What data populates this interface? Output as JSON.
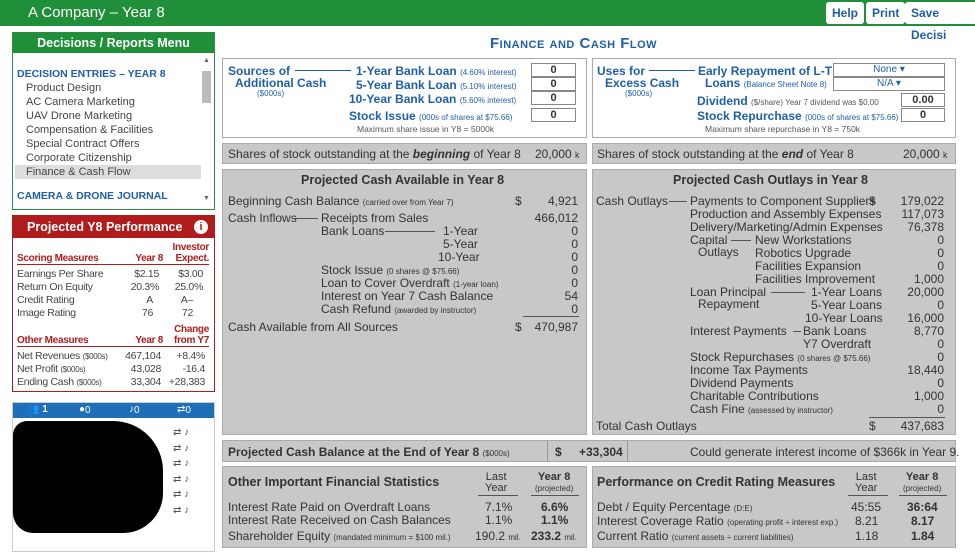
{
  "app": {
    "title": "A Company – Year 8",
    "help": "Help",
    "print": "Print",
    "save": "Save Decisi"
  },
  "menu": {
    "header": "Decisions / Reports Menu",
    "section1": "DECISION ENTRIES – YEAR 8",
    "items": [
      "Product Design",
      "AC Camera Marketing",
      "UAV Drone Marketing",
      "Compensation & Facilities",
      "Special Contract Offers",
      "Corporate Citizenship",
      "Finance & Cash Flow"
    ],
    "section2": "CAMERA & DRONE JOURNAL"
  },
  "perf": {
    "header": "Projected Y8 Performance",
    "col_year": "Year 8",
    "col_inv": "Investor",
    "col_inv2": "Expect.",
    "scoring_label": "Scoring Measures",
    "scoring": [
      {
        "name": "Earnings Per Share",
        "y8": "$2.15",
        "exp": "$3.00"
      },
      {
        "name": "Return On Equity",
        "y8": "20.3%",
        "exp": "25.0%"
      },
      {
        "name": "Credit Rating",
        "y8": "A",
        "exp": "A–"
      },
      {
        "name": "Image Rating",
        "y8": "76",
        "exp": "72"
      }
    ],
    "other_label": "Other Measures",
    "col_change": "Change",
    "col_change2": "from Y7",
    "other": [
      {
        "name": "Net Revenues",
        "unit": "($000s)",
        "y8": "467,104",
        "chg": "+8.4%"
      },
      {
        "name": "Net Profit",
        "unit": "($000s)",
        "y8": "43,028",
        "chg": "-16.4"
      },
      {
        "name": "Ending Cash",
        "unit": "($000s)",
        "y8": "33,304",
        "chg": "+28,383"
      }
    ]
  },
  "social": {
    "tab1": "1",
    "tab2": "0",
    "tab3": "0",
    "tab4": "0"
  },
  "page_title": "Finance and Cash Flow",
  "sources": {
    "title1": "Sources of",
    "title2": "Additional Cash",
    "unit": "($000s)",
    "loans": [
      {
        "label": "1-Year Bank Loan",
        "rate": "(4.60% interest)",
        "value": "0"
      },
      {
        "label": "5-Year Bank Loan",
        "rate": "(5.10% interest)",
        "value": "0"
      },
      {
        "label": "10-Year Bank Loan",
        "rate": "(5.60% interest)",
        "value": "0"
      }
    ],
    "stock_label": "Stock Issue",
    "stock_note": "(000s of shares at $75.66)",
    "stock_value": "0",
    "max_note": "Maximum share issue in Y8 = 5000k"
  },
  "uses": {
    "title1": "Uses for",
    "title2": "Excess Cash",
    "unit": "($000s)",
    "early_label": "Early Repayment of L-T",
    "early_label2": "Loans",
    "early_note": "(Balance Sheet Note 8)",
    "early_value": "None ▾",
    "early_value2": "N/A ▾",
    "div_label": "Dividend",
    "div_note": "($/share)  Year 7 dividend was $0.00",
    "div_value": "0.00",
    "rep_label": "Stock Repurchase",
    "rep_note": "(000s of shares at $75.66)",
    "rep_value": "0",
    "max_note": "Maximum share repurchase in Y8 = 750k"
  },
  "shares": {
    "begin_label_a": "Shares of stock outstanding at the ",
    "begin_em": "beginning",
    "begin_label_b": " of Year 8",
    "begin_value": "20,000",
    "begin_unit": "k",
    "end_label_a": "Shares of stock outstanding at the ",
    "end_em": "end",
    "end_label_b": " of Year 8",
    "end_value": "20,000",
    "end_unit": "k"
  },
  "cash_avail": {
    "title": "Projected Cash Available in Year 8",
    "beg_label": "Beginning Cash Balance",
    "beg_note": "(carried over from Year 7)",
    "beg_dollar": "$",
    "beg_value": "4,921",
    "inflows_label": "Cash Inflows",
    "receipts_label": "Receipts from Sales",
    "receipts_value": "466,012",
    "bank_label": "Bank Loans",
    "loans": [
      {
        "label": "1-Year",
        "value": "0"
      },
      {
        "label": "5-Year",
        "value": "0"
      },
      {
        "label": "10-Year",
        "value": "0"
      }
    ],
    "stock_label": "Stock Issue",
    "stock_note": "(0 shares @ $75.66)",
    "stock_value": "0",
    "overdraft_label": "Loan to Cover Overdraft",
    "overdraft_note": "(1-year loan)",
    "overdraft_value": "0",
    "interest_label": "Interest on Year 7 Cash Balance",
    "interest_value": "54",
    "refund_label": "Cash Refund",
    "refund_note": "(awarded by instructor)",
    "refund_value": "0",
    "total_label": "Cash Available from All Sources",
    "total_dollar": "$",
    "total_value": "470,987"
  },
  "cash_out": {
    "title": "Projected Cash Outlays in Year 8",
    "outlays_label": "Cash Outlays",
    "dollar": "$",
    "rows": [
      {
        "label": "Payments to Component Suppliers",
        "value": "179,022"
      },
      {
        "label": "Production and Assembly Expenses",
        "value": "117,073"
      },
      {
        "label": "Delivery/Marketing/Admin Expenses",
        "value": "76,378"
      }
    ],
    "capital_label": "Capital",
    "capital_label2": "Outlays",
    "capital": [
      {
        "label": "New Workstations",
        "value": "0"
      },
      {
        "label": "Robotics Upgrade",
        "value": "0"
      },
      {
        "label": "Facilities Expansion",
        "value": "0"
      },
      {
        "label": "Facilities Improvement",
        "value": "1,000"
      }
    ],
    "loan_label": "Loan Principal",
    "loan_label2": "Repayment",
    "loans": [
      {
        "label": "1-Year Loans",
        "value": "20,000"
      },
      {
        "label": "5-Year Loans",
        "value": "0"
      },
      {
        "label": "10-Year Loans",
        "value": "16,000"
      }
    ],
    "int_label": "Interest Payments",
    "int": [
      {
        "label": "Bank Loans",
        "value": "8,770"
      },
      {
        "label": "Y7 Overdraft",
        "value": "0"
      }
    ],
    "rep_label": "Stock Repurchases",
    "rep_note": "(0 shares @ $75.66)",
    "rep_value": "0",
    "tax_label": "Income Tax Payments",
    "tax_value": "18,440",
    "div_label": "Dividend Payments",
    "div_value": "0",
    "char_label": "Charitable Contributions",
    "char_value": "1,000",
    "fine_label": "Cash Fine",
    "fine_note": "(assessed by instructor)",
    "fine_value": "0",
    "total_label": "Total Cash Outlays",
    "total_dollar": "$",
    "total_value": "437,683"
  },
  "balance": {
    "label": "Projected Cash Balance at the End of Year 8",
    "unit": "($000s)",
    "dollar": "$",
    "value": "+33,304",
    "note": "Could generate interest income of $366k in Year 9."
  },
  "fin_stats": {
    "title": "Other Important Financial Statistics",
    "col1": "Last",
    "col1b": "Year",
    "col2": "Year 8",
    "col2b": "(projected)",
    "rows": [
      {
        "label": "Interest Rate Paid on Overdraft Loans",
        "note": "",
        "last": "7.1%",
        "y8": "6.6%"
      },
      {
        "label": "Interest Rate Received on Cash Balances",
        "note": "",
        "last": "1.1%",
        "y8": "1.1%"
      },
      {
        "label": "Shareholder Equity",
        "note": "(mandated minimum = $100 mil.)",
        "last": "190.2",
        "last_unit": "mil.",
        "y8": "233.2",
        "y8_unit": "mil."
      }
    ]
  },
  "credit": {
    "title": "Performance on Credit Rating Measures",
    "col1": "Last",
    "col1b": "Year",
    "col2": "Year 8",
    "col2b": "(projected)",
    "rows": [
      {
        "label": "Debt / Equity Percentage",
        "note": "(D:E)",
        "last": "45:55",
        "y8": "36:64"
      },
      {
        "label": "Interest Coverage Ratio",
        "note": "(operating profit ÷ interest exp.)",
        "last": "8.21",
        "y8": "8.17"
      },
      {
        "label": "Current Ratio",
        "note": "(current assets ÷ current liabilities)",
        "last": "1.18",
        "y8": "1.84"
      }
    ]
  },
  "colors": {
    "green": "#1f8f3a",
    "blue": "#1e5fa8",
    "red": "#b01c1c",
    "panel": "#c8c8c8"
  }
}
